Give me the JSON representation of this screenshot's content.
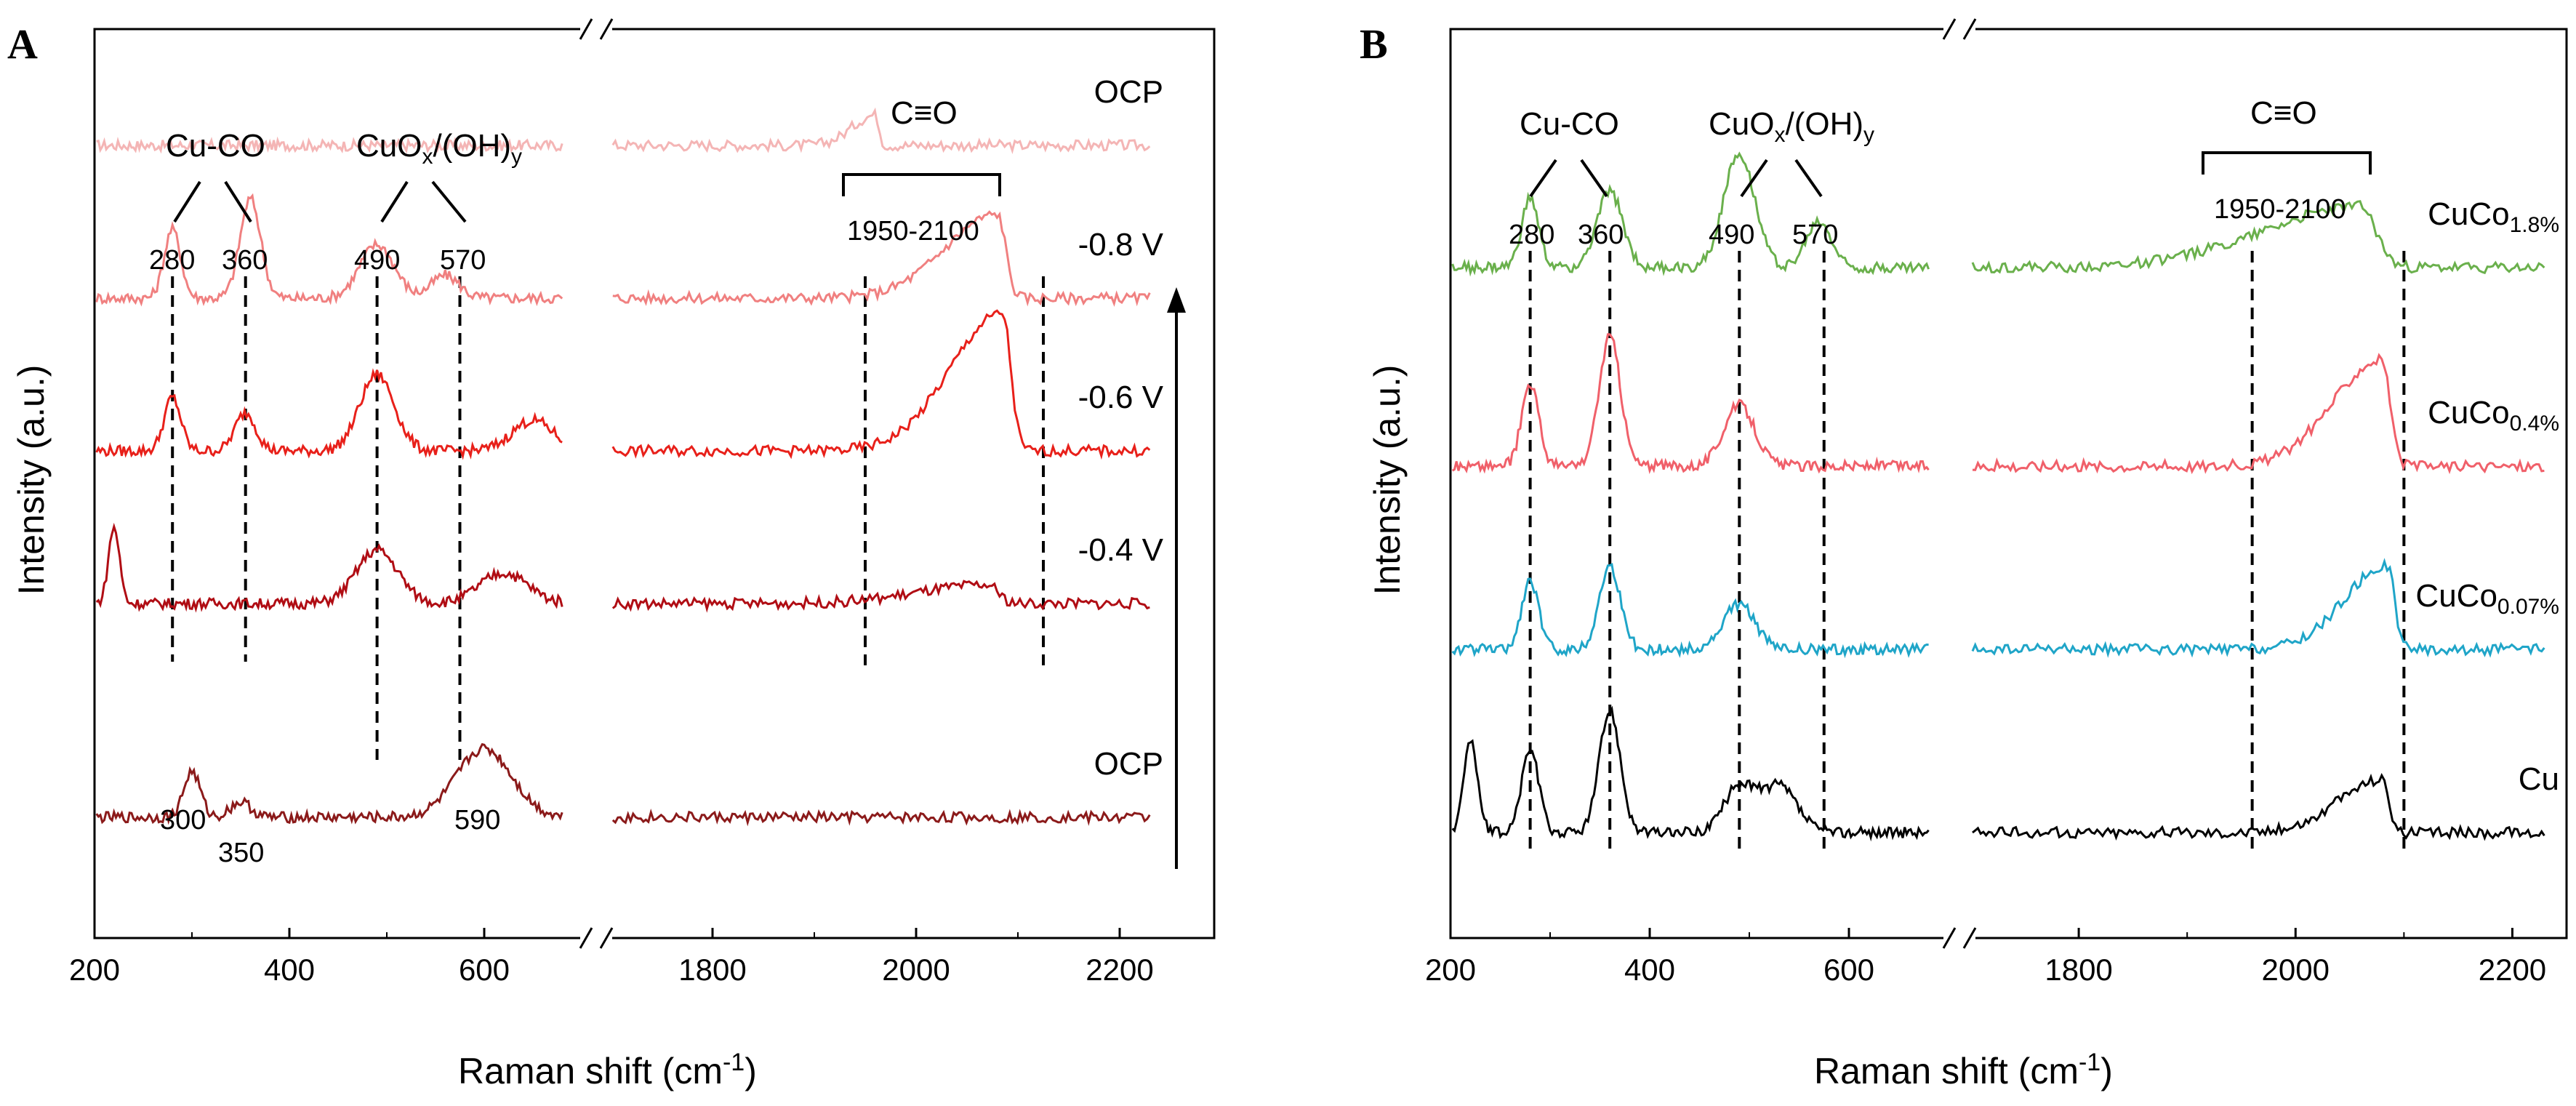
{
  "chart_data": [
    {
      "panel": "A",
      "type": "line",
      "xlabel": "Raman shift (cm-1)",
      "xlabel_main": "Raman shift (cm",
      "xlabel_sup": "-1",
      "xlabel_close": ")",
      "ylabel": "Intensity (a.u.)",
      "x_segments": [
        [
          200,
          700
        ],
        [
          1700,
          2250
        ]
      ],
      "x_ticks": [
        "200",
        "400",
        "600",
        "1800",
        "2000",
        "2200"
      ],
      "arrow": "up",
      "annotations": {
        "cu_co": "Cu-CO",
        "cuox_base": "CuO",
        "cuox_sub1": "x",
        "cuox_mid": "/(OH)",
        "cuox_sub2": "y",
        "cto": "C≡O",
        "range": "1950-2100",
        "peak_labels": [
          "280",
          "360",
          "490",
          "570"
        ],
        "extra_peaks": [
          "300",
          "350",
          "590"
        ]
      },
      "dashed_lines_x": [
        280,
        355,
        490,
        575,
        1950,
        2125
      ],
      "series": [
        {
          "name": "OCP",
          "color": "#f4b5b5",
          "offset": 5,
          "peaks": [
            [
              1960,
              0.2,
              20
            ]
          ],
          "base_slope": -0.1
        },
        {
          "name": "-0.8 V",
          "color": "#f08080",
          "offset": 4,
          "peaks": [
            [
              280,
              0.45,
              12
            ],
            [
              360,
              0.65,
              15
            ],
            [
              490,
              0.35,
              25
            ],
            [
              560,
              0.15,
              20
            ],
            [
              2080,
              0.55,
              45
            ]
          ],
          "base_slope": 0
        },
        {
          "name": "-0.6 V",
          "color": "#e8201a",
          "offset": 3,
          "peaks": [
            [
              280,
              0.35,
              12
            ],
            [
              355,
              0.25,
              15
            ],
            [
              490,
              0.5,
              25
            ],
            [
              650,
              0.2,
              30
            ],
            [
              2085,
              0.9,
              45
            ]
          ],
          "base_slope": 0
        },
        {
          "name": "-0.4 V",
          "color": "#b00d14",
          "offset": 2,
          "peaks": [
            [
              220,
              0.5,
              8
            ],
            [
              490,
              0.35,
              30
            ],
            [
              620,
              0.2,
              35
            ],
            [
              2070,
              0.12,
              60
            ]
          ],
          "base_slope": 0
        },
        {
          "name": "OCP",
          "color": "#8b1a1a",
          "offset": 0.6,
          "peaks": [
            [
              300,
              0.3,
              12
            ],
            [
              350,
              0.1,
              15
            ],
            [
              600,
              0.45,
              40
            ]
          ],
          "base_slope": 0
        }
      ]
    },
    {
      "panel": "B",
      "type": "line",
      "xlabel": "Raman shift (cm-1)",
      "xlabel_main": "Raman shift (cm",
      "xlabel_sup": "-1",
      "xlabel_close": ")",
      "ylabel": "Intensity (a.u.)",
      "x_segments": [
        [
          200,
          700
        ],
        [
          1700,
          2250
        ]
      ],
      "x_ticks": [
        "200",
        "400",
        "600",
        "1800",
        "2000",
        "2200"
      ],
      "annotations": {
        "cu_co": "Cu-CO",
        "cuox_base": "CuO",
        "cuox_sub1": "x",
        "cuox_mid": "/(OH)",
        "cuox_sub2": "y",
        "cto": "C≡O",
        "range": "1950-2100",
        "peak_labels": [
          "280",
          "360",
          "490",
          "570"
        ]
      },
      "dashed_lines_x": [
        280,
        360,
        490,
        575,
        1960,
        2100
      ],
      "series": [
        {
          "name": "CuCo",
          "sub": "1.8%",
          "color": "#6ab04c",
          "offset": 4.2,
          "peaks": [
            [
              280,
              0.45,
              12
            ],
            [
              360,
              0.5,
              18
            ],
            [
              490,
              0.75,
              22
            ],
            [
              570,
              0.3,
              18
            ],
            [
              2060,
              0.4,
              80
            ]
          ]
        },
        {
          "name": "CuCo",
          "sub": "0.4%",
          "color": "#f0606a",
          "offset": 2.9,
          "peaks": [
            [
              280,
              0.55,
              12
            ],
            [
              360,
              0.85,
              15
            ],
            [
              490,
              0.4,
              22
            ],
            [
              2080,
              0.7,
              40
            ]
          ]
        },
        {
          "name": "CuCo",
          "sub": "0.07%",
          "color": "#1fa5c8",
          "offset": 1.7,
          "peaks": [
            [
              280,
              0.45,
              12
            ],
            [
              360,
              0.55,
              15
            ],
            [
              490,
              0.3,
              22
            ],
            [
              2085,
              0.55,
              35
            ]
          ]
        },
        {
          "name": "Cu",
          "color": "#000000",
          "offset": 0.5,
          "peaks": [
            [
              220,
              0.6,
              10
            ],
            [
              280,
              0.55,
              12
            ],
            [
              360,
              0.8,
              15
            ],
            [
              490,
              0.3,
              22
            ],
            [
              530,
              0.3,
              25
            ],
            [
              2080,
              0.35,
              35
            ]
          ]
        }
      ]
    }
  ],
  "panel_letters": [
    "A",
    "B"
  ]
}
